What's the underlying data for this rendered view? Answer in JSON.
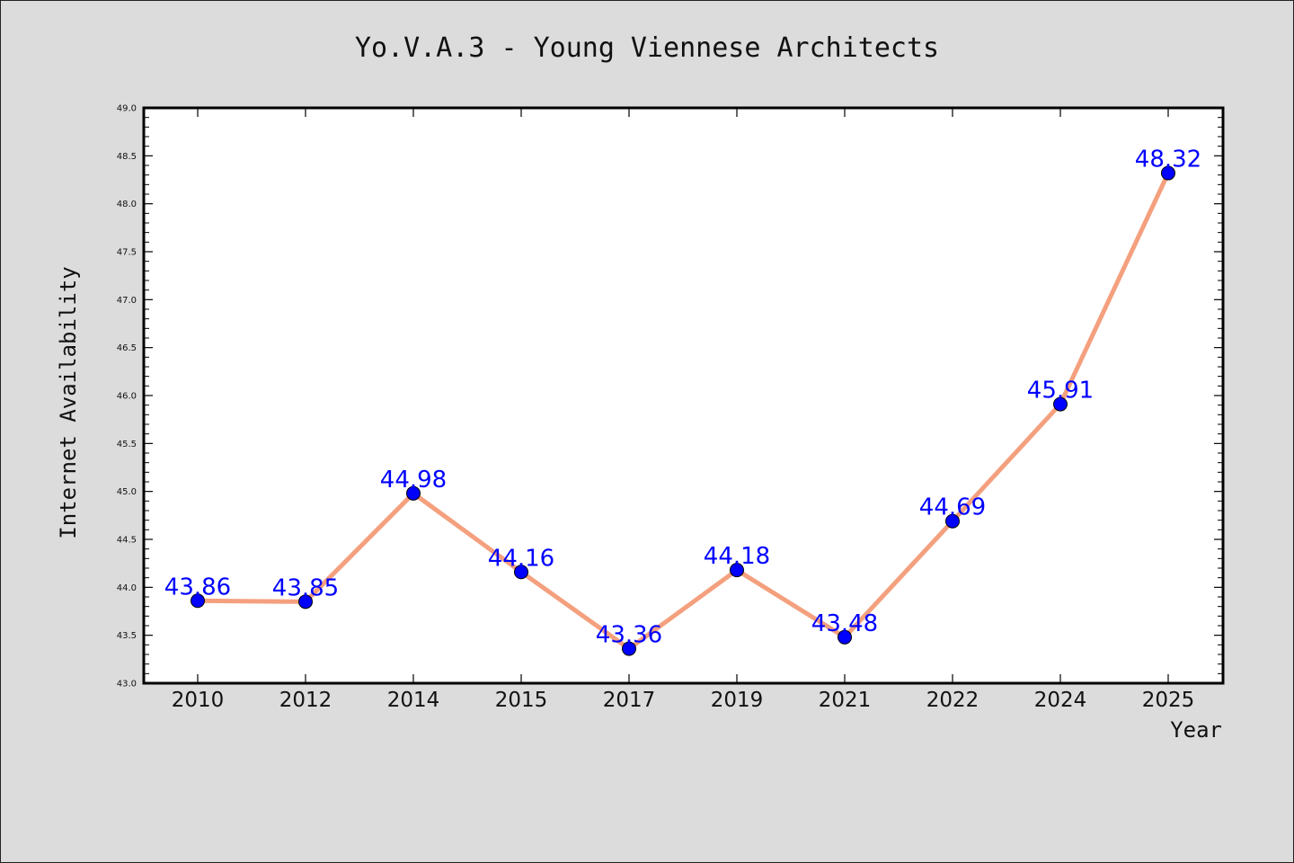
{
  "chart_data": {
    "type": "line",
    "title": "Yo.V.A.3 - Young Viennese Architects",
    "xlabel": "Year",
    "ylabel": "Internet Availability",
    "categories": [
      "2010",
      "2012",
      "2014",
      "2015",
      "2017",
      "2019",
      "2021",
      "2022",
      "2024",
      "2025"
    ],
    "series": [
      {
        "values": [
          43.86,
          43.85,
          44.98,
          44.16,
          43.36,
          44.18,
          43.48,
          44.69,
          45.91,
          48.32
        ],
        "labels": [
          "43.86",
          "43.85",
          "44.98",
          "44.16",
          "43.36",
          "44.18",
          "43.48",
          "44.69",
          "45.91",
          "48.32"
        ],
        "line_color": "#f4a07e",
        "marker_color": "#0000ff"
      }
    ],
    "ylim": [
      43.0,
      49.0
    ],
    "yticks": [
      "43.0",
      "43.5",
      "44.0",
      "44.5",
      "45.0",
      "45.5",
      "46.0",
      "46.5",
      "47.0",
      "47.5",
      "48.0",
      "48.5",
      "49.0"
    ],
    "grid": false,
    "legend": "none"
  }
}
